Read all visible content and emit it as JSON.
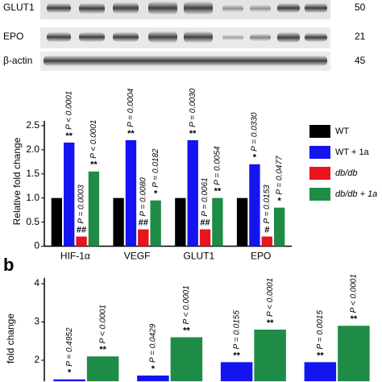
{
  "blots": {
    "rows": [
      {
        "label": "GLUT1",
        "kda": "50"
      },
      {
        "label": "EPO",
        "kda": "21"
      },
      {
        "label": "β-actin",
        "kda": "45"
      }
    ]
  },
  "chart_data": [
    {
      "type": "bar",
      "ylabel": "Relative fold change",
      "categories": [
        "HIF-1α",
        "VEGF",
        "GLUT1",
        "EPO"
      ],
      "ylim": [
        0,
        2.6
      ],
      "yticks": [
        0,
        0.5,
        {
          "value": 1,
          "label": "1.0"
        },
        1.5,
        {
          "value": 2,
          "label": "2.0"
        },
        2.5
      ],
      "legend": "right",
      "series": [
        {
          "name": "WT",
          "color": "#000000",
          "values": [
            1.0,
            1.0,
            1.0,
            1.0
          ]
        },
        {
          "name": "WT + 1a",
          "color": "#1414f0",
          "values": [
            2.15,
            2.2,
            2.2,
            1.7
          ],
          "sig": [
            "**",
            "**",
            "**",
            "*"
          ],
          "p_labels": [
            "P < 0.0001",
            "P = 0.0004",
            "P = 0.0030",
            "P = 0.0330"
          ]
        },
        {
          "name": "db/db",
          "color": "#e8141e",
          "values": [
            0.2,
            0.35,
            0.35,
            0.2
          ],
          "sig": [
            "##",
            "##",
            "##",
            "#"
          ],
          "p_labels": [
            "P = 0.0003",
            "P = 0.0080",
            "P = 0.0061",
            "P = 0.0153"
          ]
        },
        {
          "name": "db/db + 1a",
          "color": "#1e8c46",
          "values": [
            1.55,
            0.95,
            1.0,
            0.8
          ],
          "sig": [
            "**",
            "*",
            "**",
            "*"
          ],
          "p_labels": [
            "P < 0.0001",
            "P = 0.0182",
            "P = 0.0054",
            "P = 0.0477"
          ]
        }
      ]
    },
    {
      "type": "bar",
      "panel": "b",
      "ylabel": "fold change",
      "categories": [
        null,
        null,
        null,
        null
      ],
      "ylim": [
        1.45,
        4.15
      ],
      "yticks": [
        2,
        3,
        4
      ],
      "series": [
        {
          "color": "#1414f0",
          "values": [
            1.5,
            1.6,
            1.95,
            1.95
          ],
          "sig": [
            "*",
            "*",
            "**",
            "**"
          ],
          "p_labels": [
            "P = 0.4952",
            "P = 0.0429",
            "P = 0.0155",
            "P = 0.0015"
          ]
        },
        {
          "color": "#1e8c46",
          "values": [
            2.1,
            2.6,
            2.8,
            2.9
          ],
          "sig": [
            "**",
            "**",
            "**",
            "**"
          ],
          "p_labels": [
            "P < 0.0001",
            "P < 0.0001",
            "P < 0.0001",
            "P < 0.0001"
          ]
        }
      ]
    }
  ]
}
